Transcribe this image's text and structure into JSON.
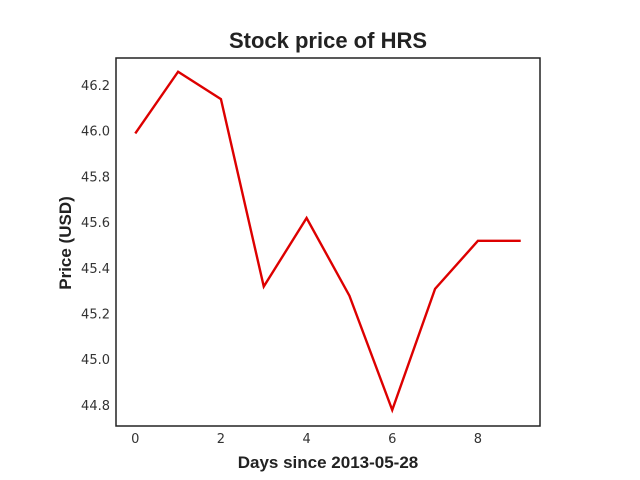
{
  "chart_data": {
    "type": "line",
    "title": "Stock price of HRS",
    "xlabel": "Days since 2013-05-28",
    "ylabel": "Price (USD)",
    "x": [
      0,
      1,
      2,
      3,
      4,
      5,
      6,
      7,
      8,
      9
    ],
    "series": [
      {
        "values": [
          45.99,
          46.26,
          46.14,
          45.32,
          45.62,
          45.28,
          44.78,
          45.31,
          45.52,
          45.52
        ],
        "color": "#dd0000"
      }
    ],
    "xlim": [
      -0.45,
      9.45
    ],
    "ylim": [
      44.71,
      46.32
    ],
    "xticks": [
      0,
      2,
      4,
      6,
      8
    ],
    "yticks": [
      44.8,
      45.0,
      45.2,
      45.4,
      45.6,
      45.8,
      46.0,
      46.2
    ],
    "ytick_labels": [
      "44.8",
      "45.0",
      "45.2",
      "45.4",
      "45.6",
      "45.8",
      "46.0",
      "46.2"
    ],
    "grid": false,
    "legend": false
  }
}
